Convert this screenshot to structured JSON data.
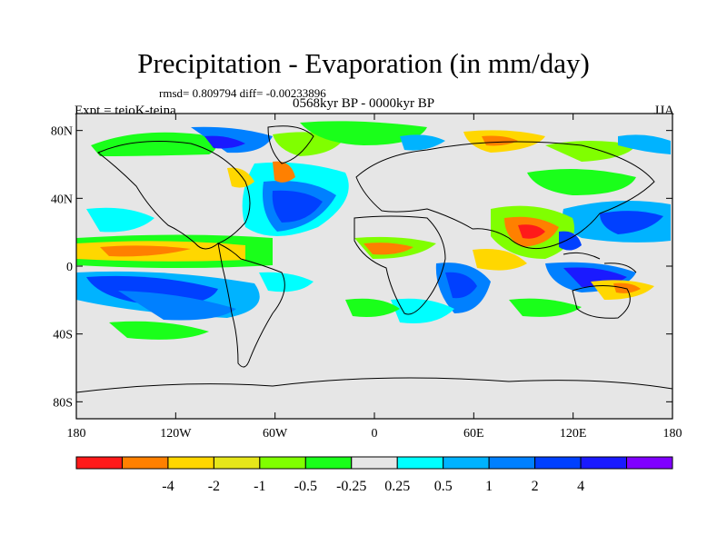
{
  "figure": {
    "title": "Precipitation - Evaporation (in mm/day)",
    "stats_text": "rmsd= 0.809794 diff= -0.00233896",
    "period_text": "0568kyr BP - 0000kyr BP",
    "experiment_text": "Expt = teioK-teina",
    "season_text": "JJA"
  },
  "map": {
    "projection": "cylindrical equidistant",
    "lon_range": [
      -180,
      180
    ],
    "lat_range": [
      -90,
      90
    ],
    "lat_ticks": [
      {
        "value": 80,
        "label": "80N"
      },
      {
        "value": 40,
        "label": "40N"
      },
      {
        "value": 0,
        "label": "0"
      },
      {
        "value": -40,
        "label": "40S"
      },
      {
        "value": -80,
        "label": "80S"
      }
    ],
    "lon_ticks": [
      {
        "value": -180,
        "label": "180"
      },
      {
        "value": -120,
        "label": "120W"
      },
      {
        "value": -60,
        "label": "60W"
      },
      {
        "value": 0,
        "label": "0"
      },
      {
        "value": 60,
        "label": "60E"
      },
      {
        "value": 120,
        "label": "120E"
      },
      {
        "value": 180,
        "label": "180"
      }
    ]
  },
  "colorbar": {
    "colors": [
      "#ff1a1a",
      "#ff8000",
      "#ffd700",
      "#e6e61a",
      "#80ff00",
      "#1aff1a",
      "#e6e6e6",
      "#00ffff",
      "#00b3ff",
      "#0080ff",
      "#0040ff",
      "#1a1aff",
      "#8000ff"
    ],
    "labels": [
      "-4",
      "-2",
      "-1",
      "-0.5",
      "-0.25",
      "0.25",
      "0.5",
      "1",
      "2",
      "4"
    ]
  }
}
